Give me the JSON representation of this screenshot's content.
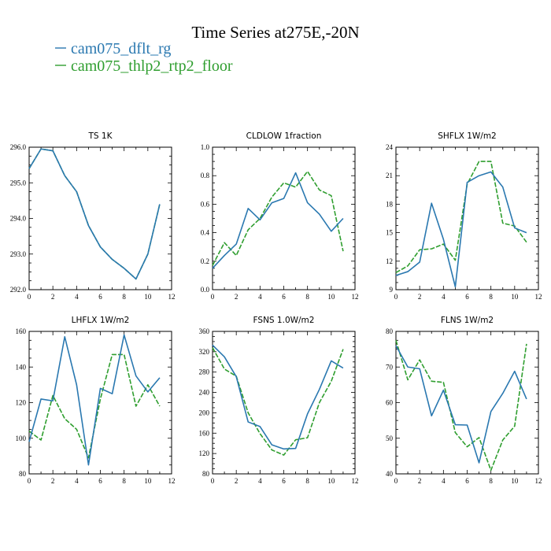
{
  "page": {
    "title": "Time Series at275E,-20N"
  },
  "legend": [
    {
      "label": "cam075_dflt_rg",
      "color": "#2a78b0",
      "dash": "none"
    },
    {
      "label": "cam075_thlp2_rtp2_floor",
      "color": "#2f9e2f",
      "dash": "6,2"
    }
  ],
  "chart_data": [
    {
      "type": "line",
      "title": "TS  1K",
      "x": [
        0,
        1,
        2,
        3,
        4,
        5,
        6,
        7,
        8,
        9,
        10,
        11
      ],
      "xlim": [
        0,
        12
      ],
      "xticks": [
        0,
        2,
        4,
        6,
        8,
        10,
        12
      ],
      "ylim": [
        292,
        296
      ],
      "yticks": [
        "292.0",
        "293.0",
        "294.0",
        "295.0",
        "296.0"
      ],
      "series": [
        {
          "name": "cam075_dflt_rg",
          "values": [
            295.4,
            295.95,
            295.9,
            295.2,
            294.75,
            293.8,
            293.2,
            292.85,
            292.6,
            292.3,
            293.0,
            294.4
          ]
        },
        {
          "name": "cam075_thlp2_rtp2_floor",
          "values": [
            295.4,
            295.95,
            295.9,
            295.2,
            294.75,
            293.8,
            293.2,
            292.85,
            292.6,
            292.3,
            293.0,
            294.4
          ]
        }
      ]
    },
    {
      "type": "line",
      "title": "CLDLOW  1fraction",
      "x": [
        0,
        1,
        2,
        3,
        4,
        5,
        6,
        7,
        8,
        9,
        10,
        11
      ],
      "xlim": [
        0,
        12
      ],
      "xticks": [
        0,
        2,
        4,
        6,
        8,
        10,
        12
      ],
      "ylim": [
        0,
        1
      ],
      "yticks": [
        "0.0",
        "0.2",
        "0.4",
        "0.6",
        "0.8",
        "1.0"
      ],
      "series": [
        {
          "name": "cam075_dflt_rg",
          "values": [
            0.15,
            0.24,
            0.32,
            0.57,
            0.49,
            0.61,
            0.64,
            0.82,
            0.61,
            0.53,
            0.41,
            0.5
          ]
        },
        {
          "name": "cam075_thlp2_rtp2_floor",
          "values": [
            0.17,
            0.33,
            0.24,
            0.42,
            0.5,
            0.65,
            0.75,
            0.72,
            0.83,
            0.7,
            0.66,
            0.27
          ]
        }
      ]
    },
    {
      "type": "line",
      "title": "SHFLX  1W/m2",
      "x": [
        0,
        1,
        2,
        3,
        4,
        5,
        6,
        7,
        8,
        9,
        10,
        11
      ],
      "xlim": [
        0,
        12
      ],
      "xticks": [
        0,
        2,
        4,
        6,
        8,
        10,
        12
      ],
      "ylim": [
        9,
        24
      ],
      "yticks": [
        "9",
        "12",
        "15",
        "18",
        "21",
        "24"
      ],
      "series": [
        {
          "name": "cam075_dflt_rg",
          "values": [
            10.5,
            10.9,
            11.9,
            18.1,
            14.3,
            9.3,
            20.3,
            21.0,
            21.4,
            19.8,
            15.5,
            15.0
          ]
        },
        {
          "name": "cam075_thlp2_rtp2_floor",
          "values": [
            10.8,
            11.5,
            13.2,
            13.3,
            13.8,
            12.1,
            20.1,
            22.5,
            22.5,
            16.0,
            15.7,
            14.0
          ]
        }
      ]
    },
    {
      "type": "line",
      "title": "LHFLX  1W/m2",
      "x": [
        0,
        1,
        2,
        3,
        4,
        5,
        6,
        7,
        8,
        9,
        10,
        11
      ],
      "xlim": [
        0,
        12
      ],
      "xticks": [
        0,
        2,
        4,
        6,
        8,
        10,
        12
      ],
      "ylim": [
        80,
        160
      ],
      "yticks": [
        "80",
        "100",
        "120",
        "140",
        "160"
      ],
      "series": [
        {
          "name": "cam075_dflt_rg",
          "values": [
            98,
            122,
            121,
            157,
            130,
            85,
            128,
            125,
            158,
            135,
            126,
            134
          ]
        },
        {
          "name": "cam075_thlp2_rtp2_floor",
          "values": [
            104,
            99,
            124,
            111,
            105,
            89,
            122,
            147,
            147,
            118,
            130,
            118
          ]
        }
      ]
    },
    {
      "type": "line",
      "title": "FSNS  1.0W/m2",
      "x": [
        0,
        1,
        2,
        3,
        4,
        5,
        6,
        7,
        8,
        9,
        10,
        11
      ],
      "xlim": [
        0,
        12
      ],
      "xticks": [
        0,
        2,
        4,
        6,
        8,
        10,
        12
      ],
      "ylim": [
        80,
        360
      ],
      "yticks": [
        "80",
        "120",
        "160",
        "200",
        "240",
        "280",
        "320",
        "360"
      ],
      "series": [
        {
          "name": "cam075_dflt_rg",
          "values": [
            333,
            310,
            271,
            182,
            173,
            137,
            129,
            130,
            198,
            246,
            302,
            288
          ]
        },
        {
          "name": "cam075_thlp2_rtp2_floor",
          "values": [
            328,
            286,
            272,
            200,
            159,
            127,
            117,
            147,
            151,
            220,
            262,
            325
          ]
        }
      ]
    },
    {
      "type": "line",
      "title": "FLNS  1W/m2",
      "x": [
        0,
        1,
        2,
        3,
        4,
        5,
        6,
        7,
        8,
        9,
        10,
        11
      ],
      "xlim": [
        0,
        12
      ],
      "xticks": [
        0,
        2,
        4,
        6,
        8,
        10,
        12
      ],
      "ylim": [
        40,
        80
      ],
      "yticks": [
        "40",
        "50",
        "60",
        "70",
        "80"
      ],
      "series": [
        {
          "name": "cam075_dflt_rg",
          "values": [
            76,
            70,
            69.5,
            56.3,
            63.5,
            53.8,
            53.7,
            43.1,
            57.5,
            62.6,
            68.8,
            61.0
          ]
        },
        {
          "name": "cam075_thlp2_rtp2_floor",
          "values": [
            77.5,
            66.4,
            72,
            66,
            65.7,
            51.6,
            47.6,
            50.2,
            41,
            49.5,
            53.4,
            76.5
          ]
        }
      ]
    }
  ]
}
